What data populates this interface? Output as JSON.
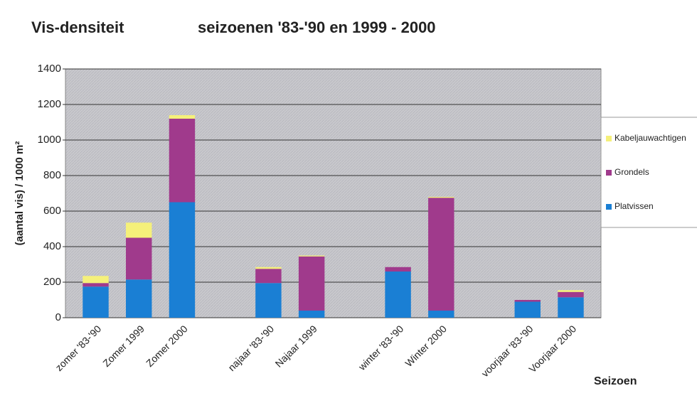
{
  "chart_data": {
    "type": "stacked_bar",
    "title": "Vis-densiteit",
    "subtitle": "seizoenen '83-'90 en 1999 - 2000",
    "y_label": "(aantal vis) / 1000 m²",
    "x_label": "Seizoen",
    "categories": [
      "zomer '83-'90",
      "Zomer 1999",
      "Zomer 2000",
      null,
      "najaar '83-'90",
      "Najaar 1999",
      null,
      "winter '83-'90",
      "Winter 2000",
      null,
      "voorjaar '83-'90",
      "Voorjaar 2000"
    ],
    "series": [
      {
        "name": "Platvissen",
        "color": "#1a7fd4",
        "values": [
          175,
          215,
          650,
          null,
          195,
          40,
          null,
          260,
          40,
          null,
          90,
          115
        ]
      },
      {
        "name": "Grondels",
        "color": "#a03a8c",
        "values": [
          20,
          235,
          470,
          null,
          80,
          305,
          null,
          25,
          635,
          null,
          10,
          30
        ]
      },
      {
        "name": "Kabeljauwachtigen",
        "color": "#f5f07a",
        "values": [
          40,
          85,
          20,
          null,
          10,
          5,
          null,
          0,
          5,
          null,
          0,
          10
        ]
      }
    ],
    "ylim": [
      0,
      1400
    ],
    "yticks": [
      0,
      200,
      400,
      600,
      800,
      1000,
      1200,
      1400
    ],
    "grid": true,
    "legend": "right"
  }
}
